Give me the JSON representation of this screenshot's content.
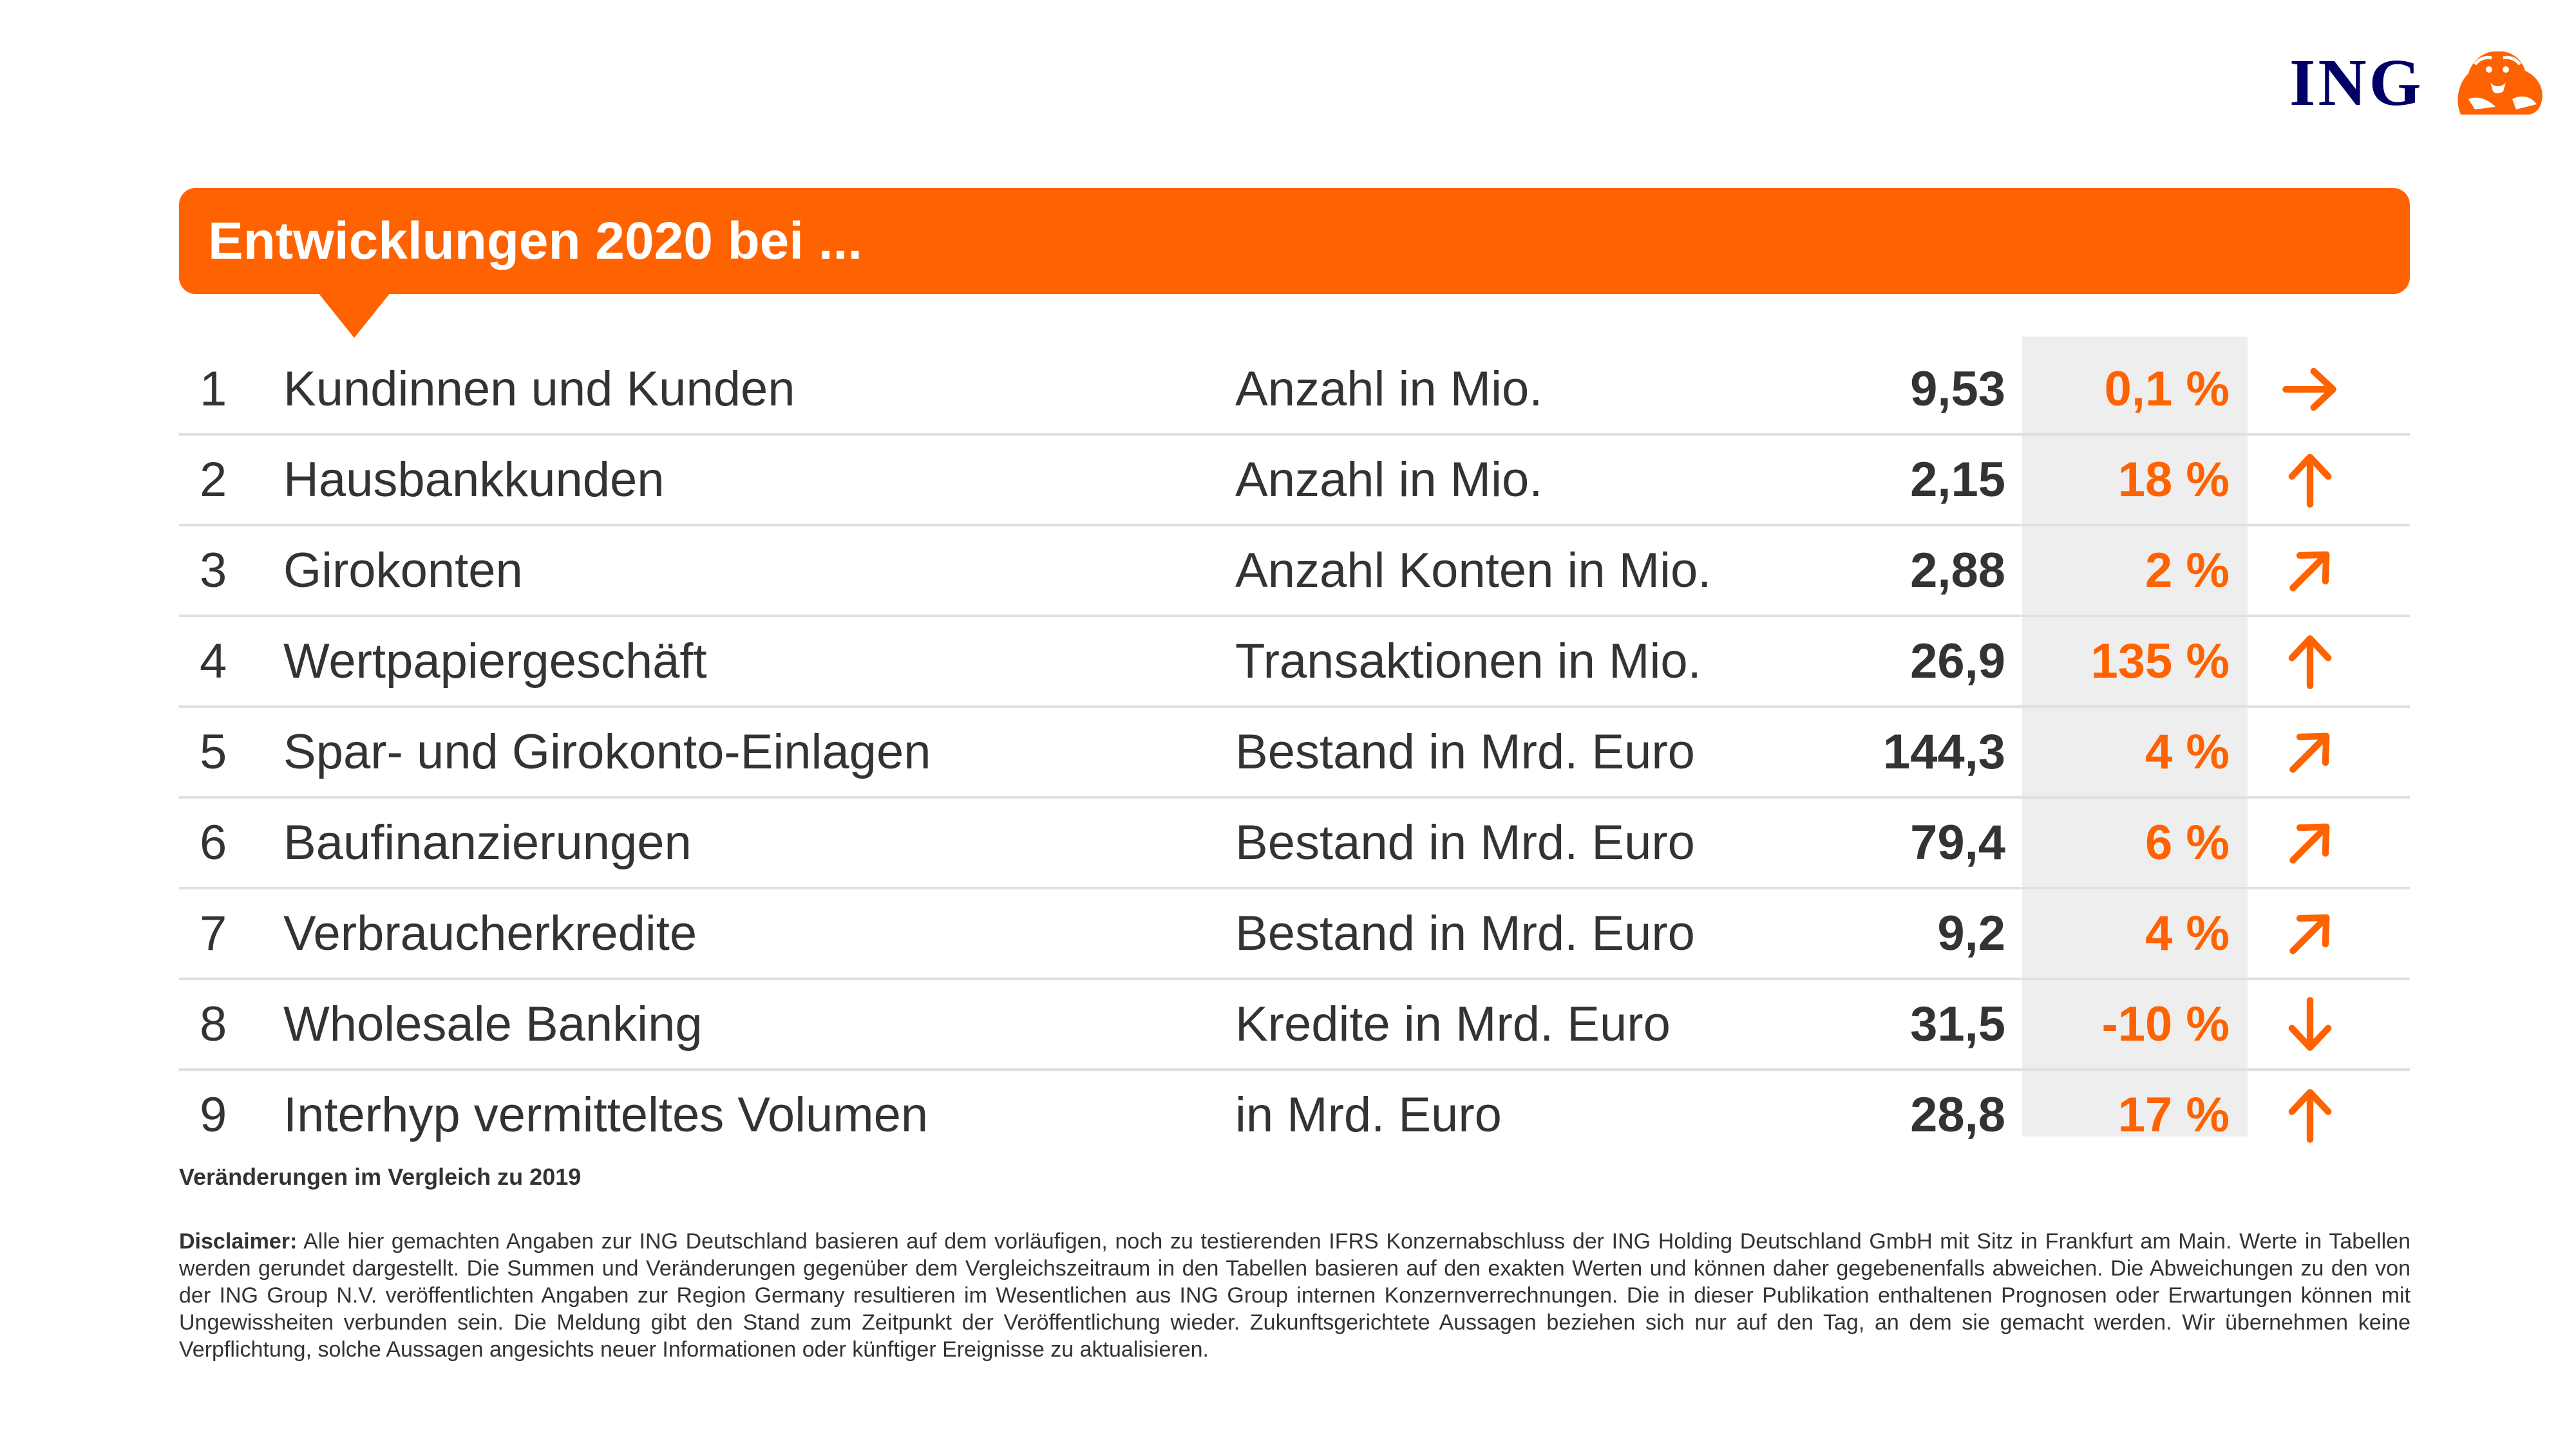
{
  "brand": {
    "logo_text": "ING",
    "logo_icon": "lion-icon",
    "color_orange": "#ff6200",
    "color_navy": "#000066"
  },
  "banner": {
    "title": "Entwicklungen 2020 bei ..."
  },
  "table": {
    "rows": [
      {
        "num": "1",
        "label": "Kundinnen und Kunden",
        "unit": "Anzahl in Mio.",
        "value": "9,53",
        "change": "0,1 %",
        "trend": "right"
      },
      {
        "num": "2",
        "label": "Hausbankkunden",
        "unit": "Anzahl in Mio.",
        "value": "2,15",
        "change": "18 %",
        "trend": "up"
      },
      {
        "num": "3",
        "label": "Girokonten",
        "unit": "Anzahl Konten in Mio.",
        "value": "2,88",
        "change": "2 %",
        "trend": "up-right"
      },
      {
        "num": "4",
        "label": "Wertpapiergeschäft",
        "unit": "Transaktionen in Mio.",
        "value": "26,9",
        "change": "135 %",
        "trend": "up"
      },
      {
        "num": "5",
        "label": "Spar- und Girokonto-Einlagen",
        "unit": "Bestand in Mrd. Euro",
        "value": "144,3",
        "change": "4 %",
        "trend": "up-right"
      },
      {
        "num": "6",
        "label": "Baufinanzierungen",
        "unit": "Bestand in Mrd. Euro",
        "value": "79,4",
        "change": "6 %",
        "trend": "up-right"
      },
      {
        "num": "7",
        "label": "Verbraucherkredite",
        "unit": "Bestand in Mrd. Euro",
        "value": "9,2",
        "change": "4 %",
        "trend": "up-right"
      },
      {
        "num": "8",
        "label": "Wholesale Banking",
        "unit": "Kredite in Mrd. Euro",
        "value": "31,5",
        "change": "-10 %",
        "trend": "down"
      },
      {
        "num": "9",
        "label": "Interhyp vermitteltes Volumen",
        "unit": "in Mrd. Euro",
        "value": "28,8",
        "change": "17 %",
        "trend": "up"
      }
    ]
  },
  "footer": {
    "note": "Veränderungen im Vergleich zu 2019",
    "disclaimer_label": "Disclaimer:",
    "disclaimer_text": " Alle hier gemachten Angaben zur ING Deutschland basieren auf dem vorläufigen, noch zu testierenden IFRS Konzernabschluss der ING Holding Deutschland GmbH mit Sitz in Frankfurt am Main. Werte in Tabellen werden gerundet dargestellt. Die Summen und Veränderungen gegenüber dem Vergleichszeitraum in den Tabellen basieren auf den exakten Werten und können daher gegebenenfalls abweichen. Die Abweichungen zu den von der ING Group N.V. veröffentlichten Angaben zur Region Germany resultieren im Wesentlichen aus ING Group internen Konzernverrechnungen. Die in dieser Publikation enthaltenen Prognosen oder Erwartungen können mit Ungewissheiten verbunden sein. Die Meldung gibt den Stand zum Zeitpunkt der Veröffentlichung wieder. Zukunftsgerichtete Aussagen beziehen sich nur auf den Tag, an dem sie gemacht werden. Wir übernehmen keine Verpflichtung, solche Aussagen angesichts neuer Informationen oder künftiger Ereignisse zu aktualisieren."
  }
}
